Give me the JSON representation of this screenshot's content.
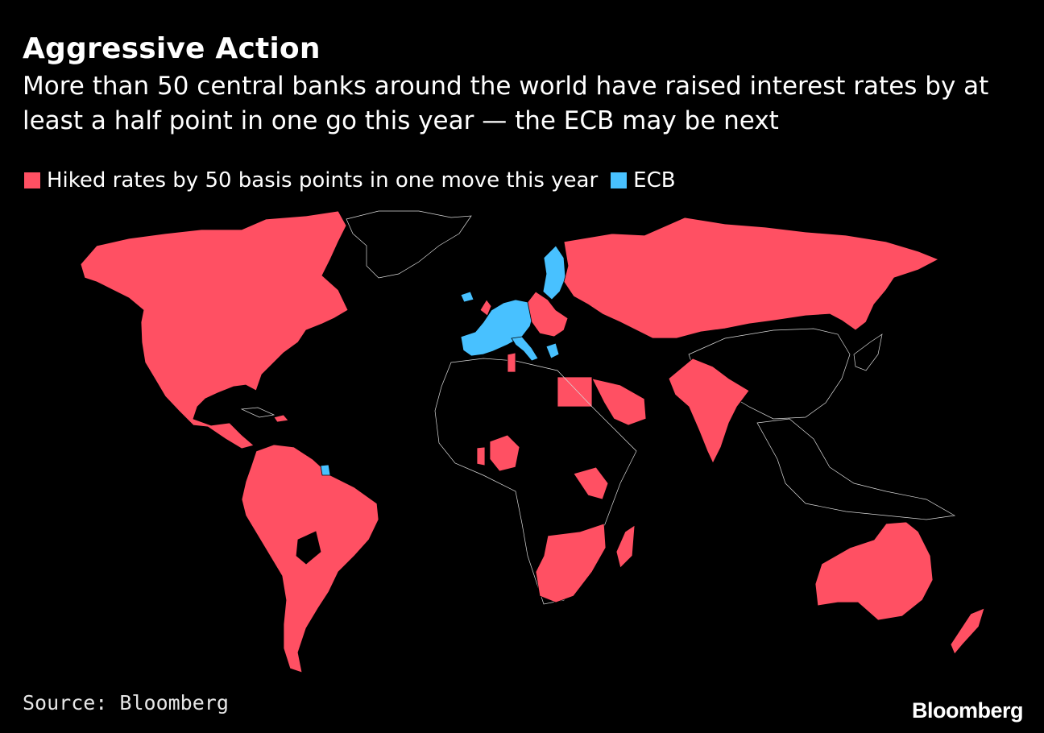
{
  "title": "Aggressive Action",
  "subtitle": "More than 50 central banks around the world have raised interest rates by at least a half point in one go this year — the ECB may be next",
  "legend": {
    "hiked": {
      "label": "Hiked rates by 50 basis points in one move this year",
      "color": "#ff5063"
    },
    "ecb": {
      "label": "ECB",
      "color": "#48c1ff"
    }
  },
  "colors": {
    "background": "#000000",
    "other": "#000000",
    "border": "#d9d9d9"
  },
  "source": "Source: Bloomberg",
  "logo": "Bloomberg"
}
